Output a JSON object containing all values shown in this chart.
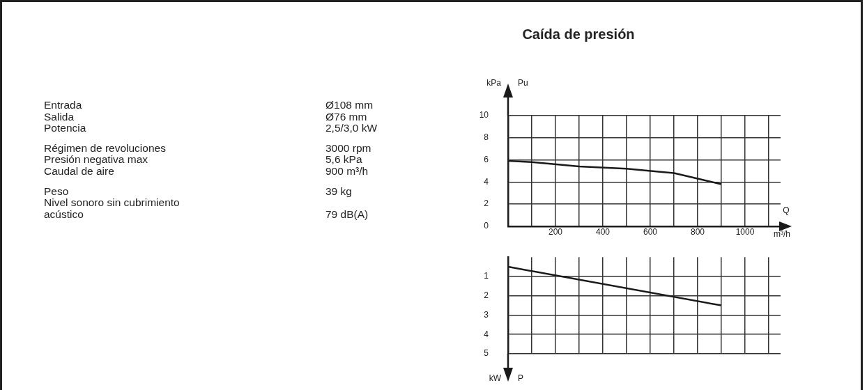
{
  "chart_data": [
    {
      "type": "other",
      "annotations": [
        "Entrada",
        "Ø108 mm",
        "Salida",
        "Ø76 mm",
        "Potencia",
        "2,5/3,0 kW",
        "Régimen de revoluciones",
        "3000 rpm",
        "Presión negativa max",
        "5,6 kPa",
        "Caudal de aire",
        "900 m³/h",
        "Peso",
        "39 kg",
        "Nivel sonoro sin cubrimiento acústico",
        "79 dB(A)"
      ]
    },
    {
      "type": "line",
      "title": "Caída de presión",
      "ylabel": "kPa",
      "xlabel": "m³/h",
      "annotations": [
        "Pu",
        "Q"
      ],
      "color": "#1a1a1a",
      "marker": "none",
      "grid": true,
      "x": [
        0,
        100,
        300,
        500,
        650,
        700,
        800,
        900
      ],
      "values": [
        5.9,
        5.8,
        5.4,
        5.2,
        4.9,
        4.8,
        4.3,
        3.8
      ],
      "xlim": [
        0,
        1150
      ],
      "xticks": [
        {
          "value": 0,
          "label": null
        },
        {
          "value": 100,
          "label": null
        },
        200,
        {
          "value": 300,
          "label": null
        },
        400,
        {
          "value": 500,
          "label": null
        },
        600,
        {
          "value": 700,
          "label": null
        },
        800,
        {
          "value": 900,
          "label": null
        },
        1000,
        {
          "value": 1100,
          "label": null
        }
      ],
      "ylim": [
        0,
        10
      ],
      "yticks": [
        0,
        2,
        4,
        6,
        8,
        10
      ]
    },
    {
      "type": "line",
      "ylabel": "kW",
      "annotations": [
        "P"
      ],
      "color": "#1a1a1a",
      "marker": "none",
      "grid": true,
      "tick_labels": "y",
      "x": [
        0,
        900
      ],
      "values": [
        0.5,
        2.5
      ],
      "xlim": [
        0,
        1150
      ],
      "xticks": [
        {
          "value": 0,
          "label": null
        },
        {
          "value": 100,
          "label": null
        },
        200,
        {
          "value": 300,
          "label": null
        },
        400,
        {
          "value": 500,
          "label": null
        },
        600,
        {
          "value": 700,
          "label": null
        },
        800,
        {
          "value": 900,
          "label": null
        },
        1000,
        {
          "value": 1100,
          "label": null
        }
      ],
      "ylim": [
        5,
        0
      ],
      "yticks": [
        1,
        2,
        3,
        4,
        5
      ]
    }
  ]
}
